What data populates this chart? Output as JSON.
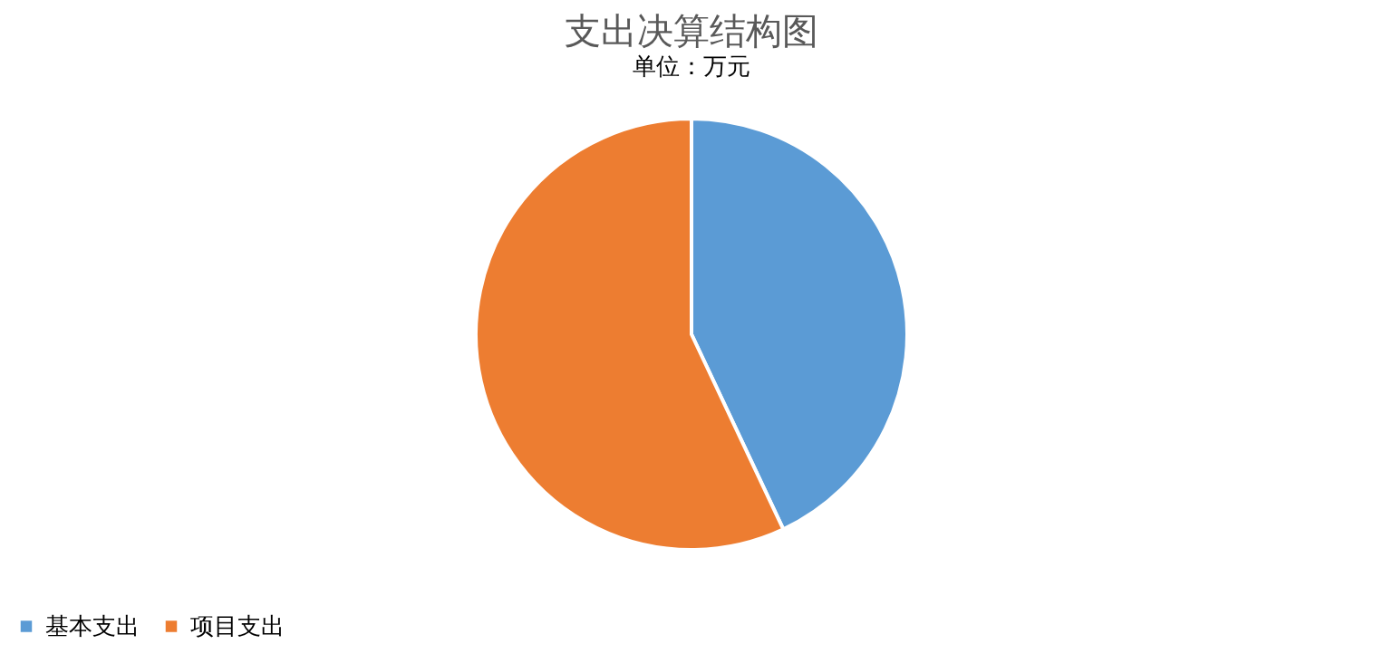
{
  "chart_data": {
    "type": "pie",
    "title": "支出决算结构图",
    "subtitle": "单位：万元",
    "categories": [
      "基本支出",
      "项目支出"
    ],
    "values": [
      43,
      57
    ],
    "colors": [
      "#5b9bd5",
      "#ed7d31"
    ],
    "legend": "bottom"
  }
}
